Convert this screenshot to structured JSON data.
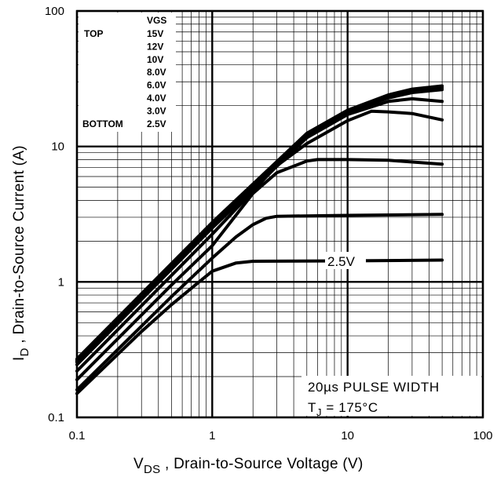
{
  "chart_data": {
    "type": "line",
    "xscale": "log",
    "yscale": "log",
    "xlim": [
      0.1,
      100
    ],
    "ylim": [
      0.1,
      100
    ],
    "grid": true,
    "xlabel": {
      "main": "V",
      "sub": "DS",
      "rest": " , Drain-to-Source Voltage (V)"
    },
    "ylabel": {
      "main": "I",
      "sub": "D",
      "rest": " , Drain-to-Source Current (A)"
    },
    "x_ticks": [
      "0.1",
      "1",
      "10",
      "100"
    ],
    "y_ticks": [
      "0.1",
      "1",
      "10",
      "100"
    ],
    "legend": {
      "header": "VGS",
      "top_label": "TOP",
      "bottom_label": "BOTTOM",
      "values": [
        "15V",
        "12V",
        "10V",
        "8.0V",
        "6.0V",
        "4.0V",
        "3.0V",
        "2.5V"
      ]
    },
    "annotation": {
      "line1": "20µs PULSE WIDTH",
      "line2_main": "T",
      "line2_sub": "J",
      "line2_rest": " = 175°C"
    },
    "curve_label": "2.5V",
    "series": [
      {
        "name": "15V",
        "x": [
          0.1,
          1,
          5,
          10,
          20,
          30,
          50
        ],
        "y": [
          0.27,
          2.75,
          12.5,
          18.5,
          24,
          26.5,
          28
        ]
      },
      {
        "name": "12V",
        "x": [
          0.1,
          1,
          5,
          10,
          20,
          30,
          50
        ],
        "y": [
          0.265,
          2.7,
          12.3,
          18.3,
          23.7,
          26,
          27.5
        ]
      },
      {
        "name": "10V",
        "x": [
          0.1,
          1,
          5,
          10,
          20,
          30,
          50
        ],
        "y": [
          0.26,
          2.65,
          12.1,
          18,
          23.3,
          25.5,
          27
        ]
      },
      {
        "name": "8.0V",
        "x": [
          0.1,
          1,
          5,
          10,
          20,
          30,
          50
        ],
        "y": [
          0.255,
          2.6,
          11.9,
          17.8,
          22.8,
          25,
          26.3
        ]
      },
      {
        "name": "6.0V",
        "x": [
          0.1,
          1,
          5,
          10,
          20,
          30,
          50
        ],
        "y": [
          0.245,
          2.5,
          11.6,
          17.2,
          21.5,
          22.5,
          21.5
        ]
      },
      {
        "name": "4.0V",
        "x": [
          0.1,
          1,
          3,
          5,
          10,
          15,
          20,
          30,
          50
        ],
        "y": [
          0.22,
          2.25,
          7.2,
          10.5,
          15.5,
          18.2,
          18,
          17.5,
          15.7
        ]
      },
      {
        "name": "3.0V",
        "x": [
          0.1,
          0.5,
          1,
          2,
          3,
          5,
          6,
          10,
          20,
          50
        ],
        "y": [
          0.19,
          0.95,
          1.85,
          4.5,
          6.4,
          7.8,
          8,
          8,
          7.9,
          7.4
        ]
      },
      {
        "name": "2.5V (upper)",
        "x": [
          0.1,
          0.5,
          1,
          1.5,
          2,
          2.5,
          3,
          10,
          50
        ],
        "y": [
          0.16,
          0.78,
          1.5,
          2.15,
          2.65,
          2.95,
          3.05,
          3.1,
          3.15
        ]
      },
      {
        "name": "2.5V",
        "x": [
          0.1,
          0.3,
          0.5,
          0.8,
          1,
          1.5,
          2,
          10,
          50
        ],
        "y": [
          0.15,
          0.43,
          0.68,
          1.0,
          1.2,
          1.38,
          1.42,
          1.43,
          1.45
        ]
      }
    ]
  }
}
